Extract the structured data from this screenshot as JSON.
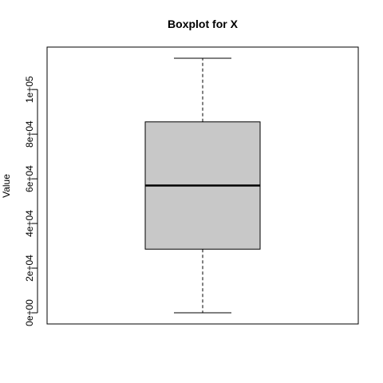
{
  "chart_data": {
    "type": "boxplot",
    "title": "Boxplot for X",
    "xlabel": "",
    "ylabel": "Value",
    "ylim": [
      -5000,
      119000
    ],
    "yticks": [
      0,
      20000,
      40000,
      60000,
      80000,
      100000
    ],
    "ytick_labels": [
      "0e+00",
      "2e+04",
      "4e+04",
      "6e+04",
      "8e+04",
      "1e+05"
    ],
    "grid": false,
    "box": {
      "whisker_low": 0,
      "q1": 28500,
      "median": 57000,
      "q3": 85500,
      "whisker_high": 114000
    },
    "colors": {
      "box_fill": "#c8c8c8",
      "line": "#000000"
    }
  }
}
